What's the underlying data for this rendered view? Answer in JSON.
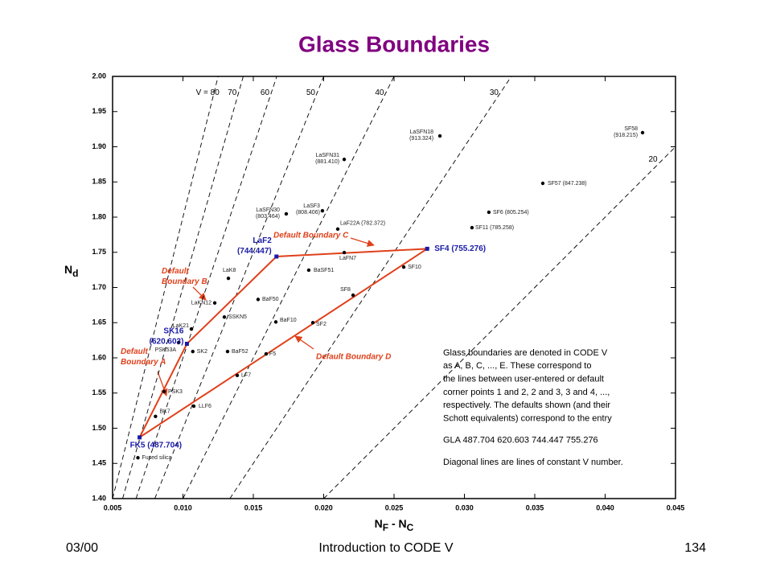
{
  "chart_data": {
    "type": "scatter",
    "title": "Glass Boundaries",
    "x_label": [
      "N",
      "F",
      " - N",
      "C"
    ],
    "y_label": [
      "N",
      "d"
    ],
    "xlim": [
      0.005,
      0.045
    ],
    "ylim": [
      1.4,
      2.0
    ],
    "xticks": [
      0.005,
      {
        "value": 0.01,
        "label": "0.010"
      },
      0.015,
      {
        "value": 0.02,
        "label": "0.020"
      },
      0.025,
      {
        "value": 0.03,
        "label": "0.030"
      },
      0.035,
      {
        "value": 0.04,
        "label": "0.040"
      },
      0.045
    ],
    "yticks": [
      {
        "value": 1.4,
        "label": "1.40"
      },
      1.45,
      {
        "value": 1.5,
        "label": "1.50"
      },
      1.55,
      {
        "value": 1.6,
        "label": "1.60"
      },
      1.65,
      {
        "value": 1.7,
        "label": "1.70"
      },
      1.75,
      {
        "value": 1.8,
        "label": "1.80"
      },
      1.85,
      {
        "value": 1.9,
        "label": "1.90"
      },
      1.95,
      {
        "value": 2.0,
        "label": "2.00"
      }
    ],
    "v_lines": [
      {
        "value": 80,
        "label": "V = 80"
      },
      70,
      60,
      50,
      40,
      30,
      20
    ],
    "points": [
      {
        "label": "Fused silica",
        "x": 0.0068,
        "y": 1.458
      },
      {
        "label": "BK7",
        "x": 0.00805,
        "y": 1.5168
      },
      {
        "label": "PSK3",
        "x": 0.00866,
        "y": 1.552
      },
      {
        "label": "PSK53A",
        "x": 0.00969,
        "y": 1.6217
      },
      {
        "label": "LaK21",
        "x": 0.0106,
        "y": 1.641
      },
      {
        "label": "SK2",
        "x": 0.0107,
        "y": 1.609
      },
      {
        "label": "LLF6",
        "x": 0.01077,
        "y": 1.5314
      },
      {
        "label": "LaKN12",
        "x": 0.01226,
        "y": 1.678
      },
      {
        "label": "LaK8",
        "x": 0.01323,
        "y": 1.713
      },
      {
        "label": "SSKN5",
        "x": 0.01294,
        "y": 1.658
      },
      {
        "label": "BaF52",
        "x": 0.01317,
        "y": 1.609
      },
      {
        "label": "LF7",
        "x": 0.01386,
        "y": 1.575
      },
      {
        "label": "F5",
        "x": 0.01591,
        "y": 1.6057
      },
      {
        "label": "BaF10",
        "x": 0.0166,
        "y": 1.651
      },
      {
        "label": "BaF50",
        "x": 0.01534,
        "y": 1.683
      },
      {
        "label": "SF2",
        "x": 0.01923,
        "y": 1.65
      },
      {
        "label": "SF8",
        "x": 0.02209,
        "y": 1.689
      },
      {
        "label": "SF10",
        "x": 0.02569,
        "y": 1.729
      },
      {
        "label": "LaFN7",
        "x": 0.02146,
        "y": 1.7497
      },
      {
        "label": "BaSF51",
        "x": 0.01894,
        "y": 1.7246
      },
      {
        "label": "LaF22A (782.372)",
        "x": 0.021,
        "y": 1.783
      },
      {
        "label": [
          "LaSFN30",
          "(803.464)"
        ],
        "x": 0.01734,
        "y": 1.8046
      },
      {
        "label": [
          "LaSF3",
          "(808.406)"
        ],
        "x": 0.01991,
        "y": 1.809
      },
      {
        "label": [
          "LaSFN31",
          "(881.410)"
        ],
        "x": 0.02146,
        "y": 1.882
      },
      {
        "label": [
          "LaSFN18",
          "(913.324)"
        ],
        "x": 0.02826,
        "y": 1.9154
      },
      {
        "label": "SF57 (847.238)",
        "x": 0.03557,
        "y": 1.848
      },
      {
        "label": "SF6 (805.254)",
        "x": 0.03174,
        "y": 1.8069
      },
      {
        "label": "SF11 (785.258)",
        "x": 0.03054,
        "y": 1.785
      },
      {
        "label": [
          "SF58",
          "(918.215)"
        ],
        "x": 0.04266,
        "y": 1.92
      }
    ],
    "corners": [
      {
        "label": "FK5 (487.704)",
        "x": 0.006918,
        "y": 1.487
      },
      {
        "label": [
          "SK16",
          "(620.603)"
        ],
        "x": 0.010282,
        "y": 1.62
      },
      {
        "label": [
          "LaF2",
          "(744.447)"
        ],
        "x": 0.016644,
        "y": 1.744
      },
      {
        "label": "SF4 (755.276)",
        "x": 0.027355,
        "y": 1.755
      }
    ],
    "boundary_labels": [
      [
        "Default",
        "Boundary  A"
      ],
      [
        "Default",
        "Boundary  B"
      ],
      [
        "Default  Boundary  C"
      ],
      [
        "Default  Boundary  D"
      ]
    ],
    "notes": [
      [
        "Glass boundaries are denoted in CODE V",
        "as A, B, C, ..., E.  These correspond to",
        "the lines between user-entered or default",
        "corner points 1 and 2, 2 and 3, 3 and 4, ...,",
        "respectively.  The defaults shown (and their",
        "Schott equivalents) correspond to the entry"
      ],
      [
        "GLA 487.704 620.603 744.447 755.276"
      ],
      [
        "Diagonal lines are lines of constant V number."
      ]
    ]
  },
  "footer": {
    "left": "03/00",
    "center": "Introduction to CODE V",
    "right": "134"
  }
}
